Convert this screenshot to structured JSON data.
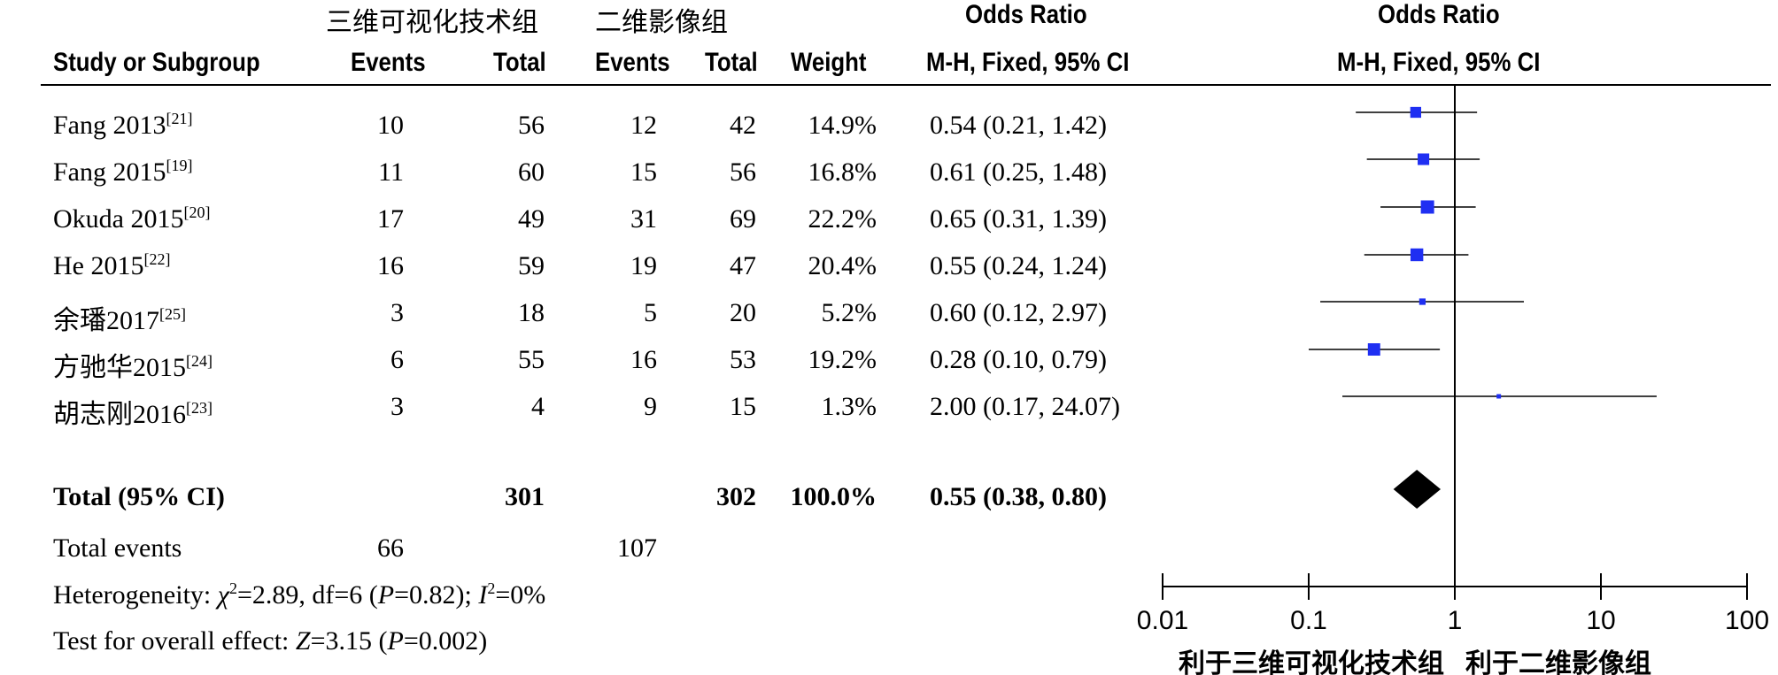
{
  "header": {
    "group1": "三维可视化技术组",
    "group2": "二维影像组",
    "or_top": "Odds Ratio",
    "or_top2": "Odds Ratio",
    "col_study": "Study or Subgroup",
    "col_events1": "Events",
    "col_total1": "Total",
    "col_events2": "Events",
    "col_total2": "Total",
    "col_weight": "Weight",
    "col_ci": "M-H, Fixed, 95% CI",
    "col_ci2": "M-H, Fixed, 95% CI"
  },
  "studies": [
    {
      "name": "Fang 2013",
      "ref": "[21]",
      "events1": "10",
      "total1": "56",
      "events2": "12",
      "total2": "42",
      "weight": "14.9%",
      "ci": "0.54 (0.21, 1.42)"
    },
    {
      "name": "Fang 2015",
      "ref": "[19]",
      "events1": "11",
      "total1": "60",
      "events2": "15",
      "total2": "56",
      "weight": "16.8%",
      "ci": "0.61 (0.25, 1.48)"
    },
    {
      "name": "Okuda 2015",
      "ref": "[20]",
      "events1": "17",
      "total1": "49",
      "events2": "31",
      "total2": "69",
      "weight": "22.2%",
      "ci": "0.65 (0.31, 1.39)"
    },
    {
      "name": "He 2015",
      "ref": "[22]",
      "events1": "16",
      "total1": "59",
      "events2": "19",
      "total2": "47",
      "weight": "20.4%",
      "ci": "0.55 (0.24, 1.24)"
    },
    {
      "name": "余璠2017",
      "ref": "[25]",
      "events1": "3",
      "total1": "18",
      "events2": "5",
      "total2": "20",
      "weight": "5.2%",
      "ci": "0.60 (0.12, 2.97)"
    },
    {
      "name": "方驰华2015",
      "ref": "[24]",
      "events1": "6",
      "total1": "55",
      "events2": "16",
      "total2": "53",
      "weight": "19.2%",
      "ci": "0.28 (0.10, 0.79)"
    },
    {
      "name": "胡志刚2016",
      "ref": "[23]",
      "events1": "3",
      "total1": "4",
      "events2": "9",
      "total2": "15",
      "weight": "1.3%",
      "ci": "2.00 (0.17, 24.07)"
    }
  ],
  "total": {
    "label": "Total (95% CI)",
    "total1": "301",
    "total2": "302",
    "weight": "100.0%",
    "ci": "0.55 (0.38, 0.80)"
  },
  "events": {
    "label": "Total events",
    "events1": "66",
    "events2": "107"
  },
  "heterogeneity": {
    "prefix": "Heterogeneity: ",
    "chi": "χ",
    "chi_sup": "2",
    "chi_rest": "=2.89, df=6 (",
    "p": "P",
    "p_rest": "=0.82); ",
    "i": "I",
    "i_sup": "2",
    "i_rest": "=0%"
  },
  "overall": {
    "prefix": "Test for overall effect: ",
    "z": "Z",
    "z_rest": "=3.15 (",
    "p": "P",
    "p_rest": "=0.002)"
  },
  "chart_data": {
    "type": "forest",
    "scale": "log",
    "xlim": [
      0.01,
      100
    ],
    "ticks": [
      0.01,
      0.1,
      1,
      10,
      100
    ],
    "tick_labels": [
      "0.01",
      "0.1",
      "1",
      "10",
      "100"
    ],
    "favours_left": "利于三维可视化技术组",
    "favours_right": "利于二维影像组",
    "studies": [
      {
        "name": "Fang 2013",
        "or": 0.54,
        "lo": 0.21,
        "hi": 1.42,
        "weight": 14.9
      },
      {
        "name": "Fang 2015",
        "or": 0.61,
        "lo": 0.25,
        "hi": 1.48,
        "weight": 16.8
      },
      {
        "name": "Okuda 2015",
        "or": 0.65,
        "lo": 0.31,
        "hi": 1.39,
        "weight": 22.2
      },
      {
        "name": "He 2015",
        "or": 0.55,
        "lo": 0.24,
        "hi": 1.24,
        "weight": 20.4
      },
      {
        "name": "余璠2017",
        "or": 0.6,
        "lo": 0.12,
        "hi": 2.97,
        "weight": 5.2
      },
      {
        "name": "方驰华2015",
        "or": 0.28,
        "lo": 0.1,
        "hi": 0.79,
        "weight": 19.2
      },
      {
        "name": "胡志刚2016",
        "or": 2.0,
        "lo": 0.17,
        "hi": 24.07,
        "weight": 1.3
      }
    ],
    "pooled": {
      "or": 0.55,
      "lo": 0.38,
      "hi": 0.8
    },
    "colors": {
      "square": "#1f2ff2",
      "line": "#000000",
      "diamond": "#000000"
    }
  }
}
